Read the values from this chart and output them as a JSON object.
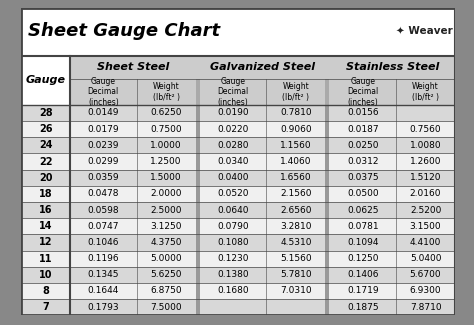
{
  "title": "Sheet Gauge Chart",
  "background_outer": "#888888",
  "background_inner": "#ffffff",
  "title_bar_bg": "#ffffff",
  "header_bg": "#cccccc",
  "row_alt_bg": "#d8d8d8",
  "row_bg": "#f0f0f0",
  "border_color": "#444444",
  "section_sep_color": "#666666",
  "gauges": [
    28,
    26,
    24,
    22,
    20,
    18,
    16,
    14,
    12,
    11,
    10,
    8,
    7
  ],
  "sheet_steel_decimal": [
    "0.0149",
    "0.0179",
    "0.0239",
    "0.0299",
    "0.0359",
    "0.0478",
    "0.0598",
    "0.0747",
    "0.1046",
    "0.1196",
    "0.1345",
    "0.1644",
    "0.1793"
  ],
  "sheet_steel_weight": [
    "0.6250",
    "0.7500",
    "1.0000",
    "1.2500",
    "1.5000",
    "2.0000",
    "2.5000",
    "3.1250",
    "4.3750",
    "5.0000",
    "5.6250",
    "6.8750",
    "7.5000"
  ],
  "galv_decimal": [
    "0.0190",
    "0.0220",
    "0.0280",
    "0.0340",
    "0.0400",
    "0.0520",
    "0.0640",
    "0.0790",
    "0.1080",
    "0.1230",
    "0.1380",
    "0.1680",
    ""
  ],
  "galv_weight": [
    "0.7810",
    "0.9060",
    "1.1560",
    "1.4060",
    "1.6560",
    "2.1560",
    "2.6560",
    "3.2810",
    "4.5310",
    "5.1560",
    "5.7810",
    "7.0310",
    ""
  ],
  "ss_decimal": [
    "0.0156",
    "0.0187",
    "0.0250",
    "0.0312",
    "0.0375",
    "0.0500",
    "0.0625",
    "0.0781",
    "0.1094",
    "0.1250",
    "0.1406",
    "0.1719",
    "0.1875"
  ],
  "ss_weight": [
    "",
    "0.7560",
    "1.0080",
    "1.2600",
    "1.5120",
    "2.0160",
    "2.5200",
    "3.1500",
    "4.4100",
    "5.0400",
    "5.6700",
    "6.9300",
    "7.8710"
  ],
  "title_fontsize": 13,
  "section_header_fontsize": 8,
  "subheader_fontsize": 5.5,
  "data_fontsize": 6.5,
  "gauge_label_fontsize": 8
}
